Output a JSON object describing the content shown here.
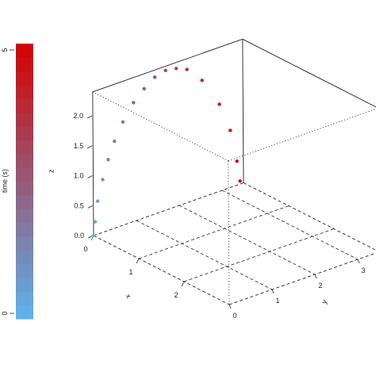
{
  "chart_data": {
    "type": "scatter3d",
    "xlabel": "x",
    "ylabel": "y",
    "zlabel": "z",
    "xlim": [
      0,
      3
    ],
    "ylim": [
      0,
      3.5
    ],
    "zlim": [
      0,
      2.4
    ],
    "x_ticks": [
      "0",
      "1",
      "2"
    ],
    "y_ticks": [
      "0",
      "1",
      "2",
      "3"
    ],
    "z_ticks": [
      "0.0",
      "0.5",
      "1.0",
      "1.5",
      "2.0"
    ],
    "colorbar": {
      "label": "time (s)",
      "min_label": "0",
      "max_label": "5",
      "range": [
        0,
        5
      ],
      "low_color": "#5ab4f0",
      "high_color": "#d40000"
    },
    "points": [
      {
        "x": 0.0,
        "y": 0.0,
        "z": 0.0,
        "t": 0.0
      },
      {
        "x": 0.0,
        "y": 0.04,
        "z": 0.22,
        "t": 0.3
      },
      {
        "x": 0.0,
        "y": 0.1,
        "z": 0.55,
        "t": 0.6
      },
      {
        "x": 0.0,
        "y": 0.22,
        "z": 0.88,
        "t": 1.0
      },
      {
        "x": 0.0,
        "y": 0.35,
        "z": 1.18,
        "t": 1.3
      },
      {
        "x": 0.0,
        "y": 0.5,
        "z": 1.45,
        "t": 1.6
      },
      {
        "x": 0.0,
        "y": 0.7,
        "z": 1.72,
        "t": 1.9
      },
      {
        "x": 0.0,
        "y": 0.95,
        "z": 1.98,
        "t": 2.3
      },
      {
        "x": 0.0,
        "y": 1.2,
        "z": 2.15,
        "t": 2.6
      },
      {
        "x": 0.0,
        "y": 1.45,
        "z": 2.28,
        "t": 2.9
      },
      {
        "x": 0.0,
        "y": 1.7,
        "z": 2.33,
        "t": 3.1
      },
      {
        "x": 0.0,
        "y": 1.95,
        "z": 2.3,
        "t": 3.3
      },
      {
        "x": 0.0,
        "y": 2.2,
        "z": 2.22,
        "t": 3.6
      },
      {
        "x": 0.0,
        "y": 2.55,
        "z": 1.95,
        "t": 3.9
      },
      {
        "x": 0.0,
        "y": 2.95,
        "z": 1.45,
        "t": 4.3
      },
      {
        "x": 0.0,
        "y": 3.2,
        "z": 0.95,
        "t": 4.6
      },
      {
        "x": 0.0,
        "y": 3.35,
        "z": 0.4,
        "t": 4.8
      },
      {
        "x": 0.0,
        "y": 3.42,
        "z": 0.05,
        "t": 5.0
      }
    ]
  }
}
